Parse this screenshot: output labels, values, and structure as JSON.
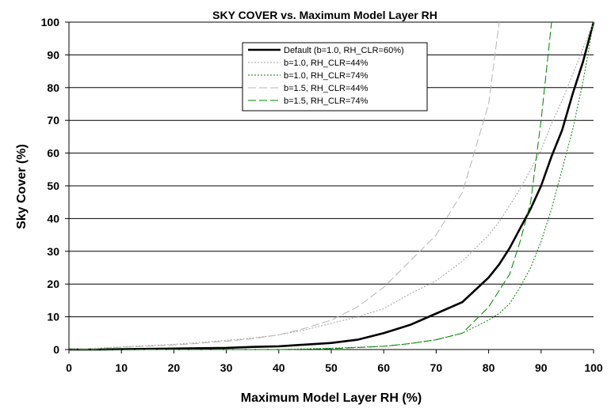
{
  "chart_data": {
    "type": "line",
    "title": "SKY COVER vs. Maximum Model Layer RH",
    "xlabel": "Maximum Model Layer RH (%)",
    "ylabel": "Sky Cover (%)",
    "xlim": [
      0,
      100
    ],
    "ylim": [
      0,
      100
    ],
    "x_ticks": [
      0,
      10,
      20,
      30,
      40,
      50,
      60,
      70,
      80,
      90,
      100
    ],
    "y_ticks": [
      0,
      10,
      20,
      30,
      40,
      50,
      60,
      70,
      80,
      90,
      100
    ],
    "grid": "horizontal",
    "legend_position": "top-center",
    "x": [
      0,
      5,
      10,
      15,
      20,
      25,
      30,
      35,
      40,
      45,
      50,
      55,
      60,
      65,
      70,
      75,
      80,
      82,
      84,
      86,
      88,
      90,
      92,
      94,
      96,
      98,
      100
    ],
    "series": [
      {
        "name": "Default (b=1.0, RH_CLR=60%)",
        "color": "#000000",
        "style": "solid",
        "values": [
          0,
          0,
          0.1,
          0.2,
          0.3,
          0.4,
          0.5,
          0.8,
          1.0,
          1.5,
          2.0,
          3.0,
          5.0,
          7.5,
          11,
          14.5,
          22,
          26,
          31,
          37,
          43,
          50,
          59,
          67,
          78,
          88,
          100
        ]
      },
      {
        "name": "b=1.0, RH_CLR=44%",
        "color": "#a0a0a0",
        "style": "dotted",
        "values": [
          0,
          0.4,
          0.8,
          1.2,
          1.6,
          2.2,
          2.8,
          3.5,
          4.5,
          6.0,
          8.0,
          10.0,
          12.5,
          17,
          21,
          27,
          35,
          39,
          44,
          49,
          55,
          61,
          69,
          76,
          84,
          92,
          100
        ]
      },
      {
        "name": "b=1.0, RH_CLR=74%",
        "color": "#008000",
        "style": "dotted",
        "values": [
          0,
          0,
          0,
          0,
          0,
          0,
          0,
          0,
          0,
          0.2,
          0.4,
          0.7,
          1.0,
          1.8,
          3.0,
          5.0,
          9.0,
          11,
          14,
          19,
          25,
          33,
          43,
          55,
          67,
          82,
          100
        ]
      },
      {
        "name": "b=1.5, RH_CLR=44%",
        "color": "#b4b4b4",
        "style": "dashed",
        "values": [
          0,
          0.3,
          0.7,
          1.0,
          1.4,
          1.9,
          2.5,
          3.3,
          4.5,
          6.5,
          9.0,
          13.0,
          19,
          27,
          35,
          48,
          75,
          100,
          null,
          null,
          null,
          null,
          null,
          null,
          null,
          null,
          null
        ]
      },
      {
        "name": "b=1.5, RH_CLR=74%",
        "color": "#008000",
        "style": "dashed",
        "values": [
          0,
          0,
          0,
          0,
          0,
          0,
          0,
          0,
          0,
          0.1,
          0.3,
          0.6,
          1.0,
          1.8,
          3.0,
          5.0,
          13,
          18,
          23,
          33,
          45,
          70,
          100,
          null,
          null,
          null,
          null
        ]
      }
    ]
  }
}
